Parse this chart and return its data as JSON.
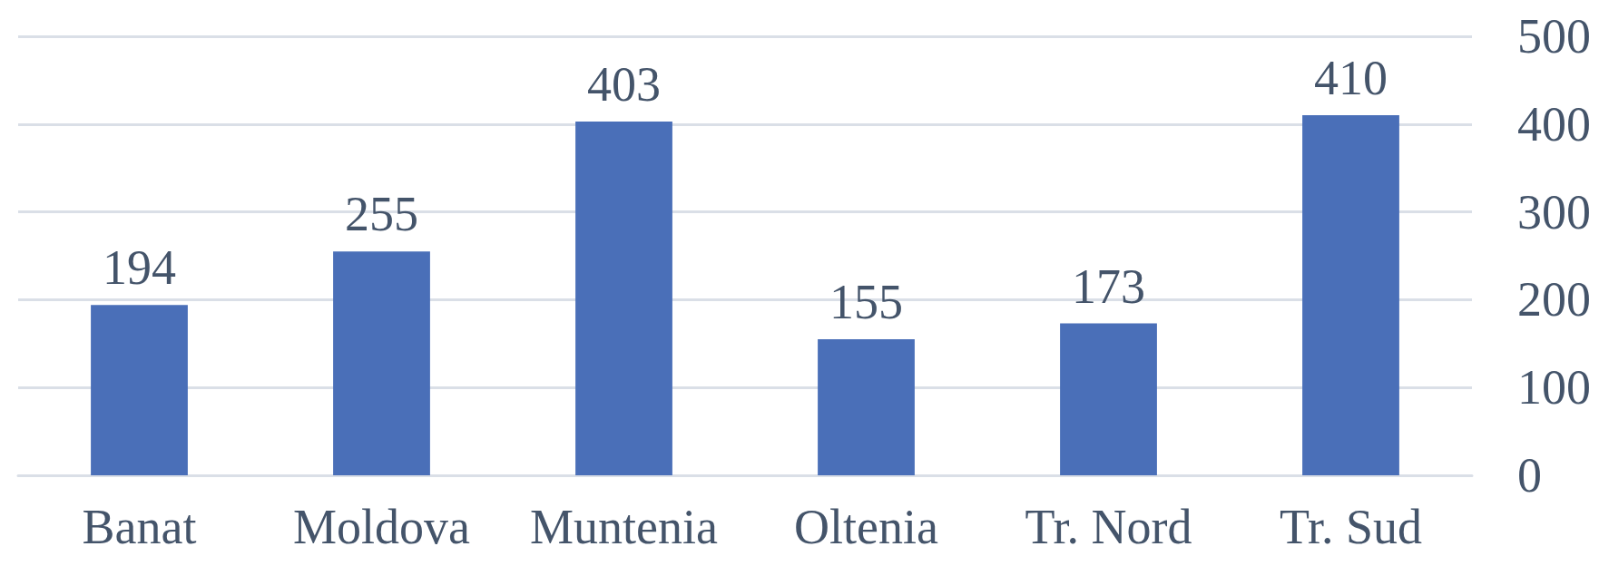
{
  "chart_data": {
    "type": "bar",
    "categories": [
      "Banat",
      "Moldova",
      "Muntenia",
      "Oltenia",
      "Tr. Nord",
      "Tr. Sud"
    ],
    "values": [
      194,
      255,
      403,
      155,
      173,
      410
    ],
    "color": "#4a6fb8",
    "ylim": [
      0,
      500
    ],
    "yticks": [
      0,
      100,
      200,
      300,
      400,
      500
    ],
    "grid": "y",
    "data_labels": true
  }
}
